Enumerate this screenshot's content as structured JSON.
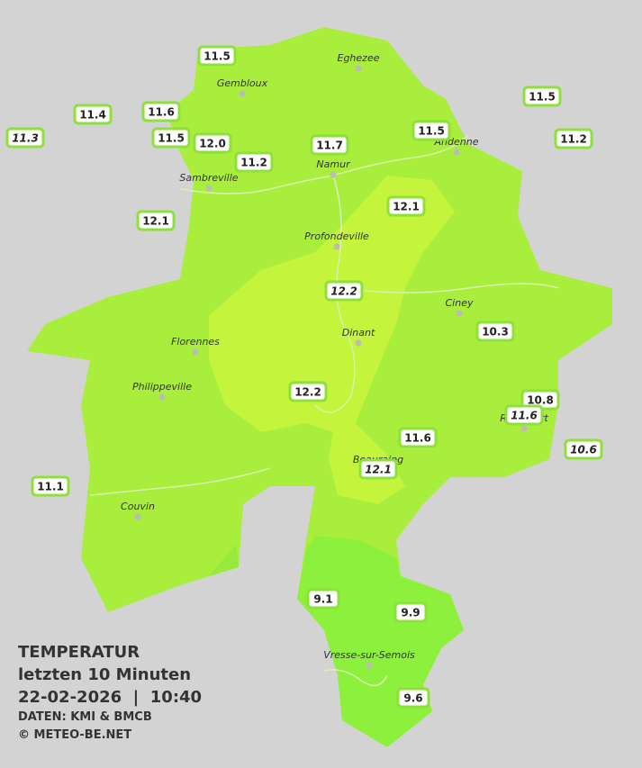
{
  "legend": {
    "title": "TEMPERATUR",
    "period": "letzten 10 Minuten",
    "datetime": "22-02-2026  |  10:40",
    "source": "DATEN: KMI & BMCB",
    "copyright": "© METEO-BE.NET"
  },
  "cities": [
    "Eghezee",
    "Gembloux",
    "Andenne",
    "Namur",
    "Sambreville",
    "Profondeville",
    "Ciney",
    "Dinant",
    "Florennes",
    "Philippeville",
    "Rochefort",
    "Beauraing",
    "Couvin",
    "Vresse-sur-Semois"
  ],
  "readings": [
    {
      "label": "11.5"
    },
    {
      "label": "11.4"
    },
    {
      "label": "11.6"
    },
    {
      "label": "11.3",
      "italic": true
    },
    {
      "label": "11.5"
    },
    {
      "label": "12.0"
    },
    {
      "label": "11.2"
    },
    {
      "label": "11.7"
    },
    {
      "label": "11.5"
    },
    {
      "label": "11.5"
    },
    {
      "label": "11.2"
    },
    {
      "label": "12.1"
    },
    {
      "label": "12.1"
    },
    {
      "label": "12.2",
      "italic": true
    },
    {
      "label": "10.3"
    },
    {
      "label": "12.2"
    },
    {
      "label": "10.8"
    },
    {
      "label": "11.6",
      "italic": true
    },
    {
      "label": "10.6",
      "italic": true
    },
    {
      "label": "11.6"
    },
    {
      "label": "12.1",
      "italic": true
    },
    {
      "label": "11.1"
    },
    {
      "label": "9.1"
    },
    {
      "label": "9.9"
    },
    {
      "label": "9.6"
    }
  ]
}
